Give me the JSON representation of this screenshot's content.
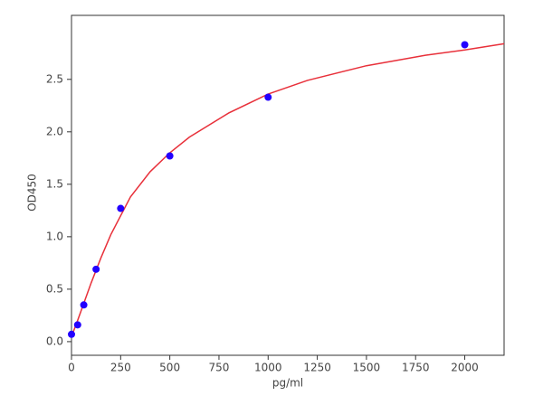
{
  "chart_data": {
    "type": "scatter",
    "x_label": "pg/ml",
    "y_label": "OD450",
    "xlim": [
      0,
      2200
    ],
    "ylim": [
      -0.13,
      3.11
    ],
    "xticks": [
      0,
      250,
      500,
      750,
      1000,
      1250,
      1500,
      1750,
      2000
    ],
    "yticks": [
      {
        "value": 0,
        "label": "0.0"
      },
      0.5,
      {
        "value": 1,
        "label": "1.0"
      },
      1.5,
      {
        "value": 2,
        "label": "2.0"
      },
      2.5
    ],
    "series": [
      {
        "type": "line",
        "color": "#e8303a",
        "x": [
          0,
          25,
          50,
          100,
          150,
          200,
          300,
          400,
          500,
          600,
          800,
          1000,
          1200,
          1500,
          1800,
          2000,
          2200
        ],
        "values": [
          0.05,
          0.17,
          0.3,
          0.56,
          0.8,
          1.02,
          1.38,
          1.62,
          1.8,
          1.95,
          2.18,
          2.36,
          2.49,
          2.63,
          2.73,
          2.78,
          2.84
        ]
      },
      {
        "type": "scatter",
        "color": "#2200ff",
        "x": [
          0,
          31.25,
          62.5,
          125,
          250,
          500,
          1000,
          2000
        ],
        "values": [
          0.07,
          0.16,
          0.35,
          0.69,
          1.27,
          1.77,
          2.33,
          2.83
        ]
      }
    ]
  }
}
